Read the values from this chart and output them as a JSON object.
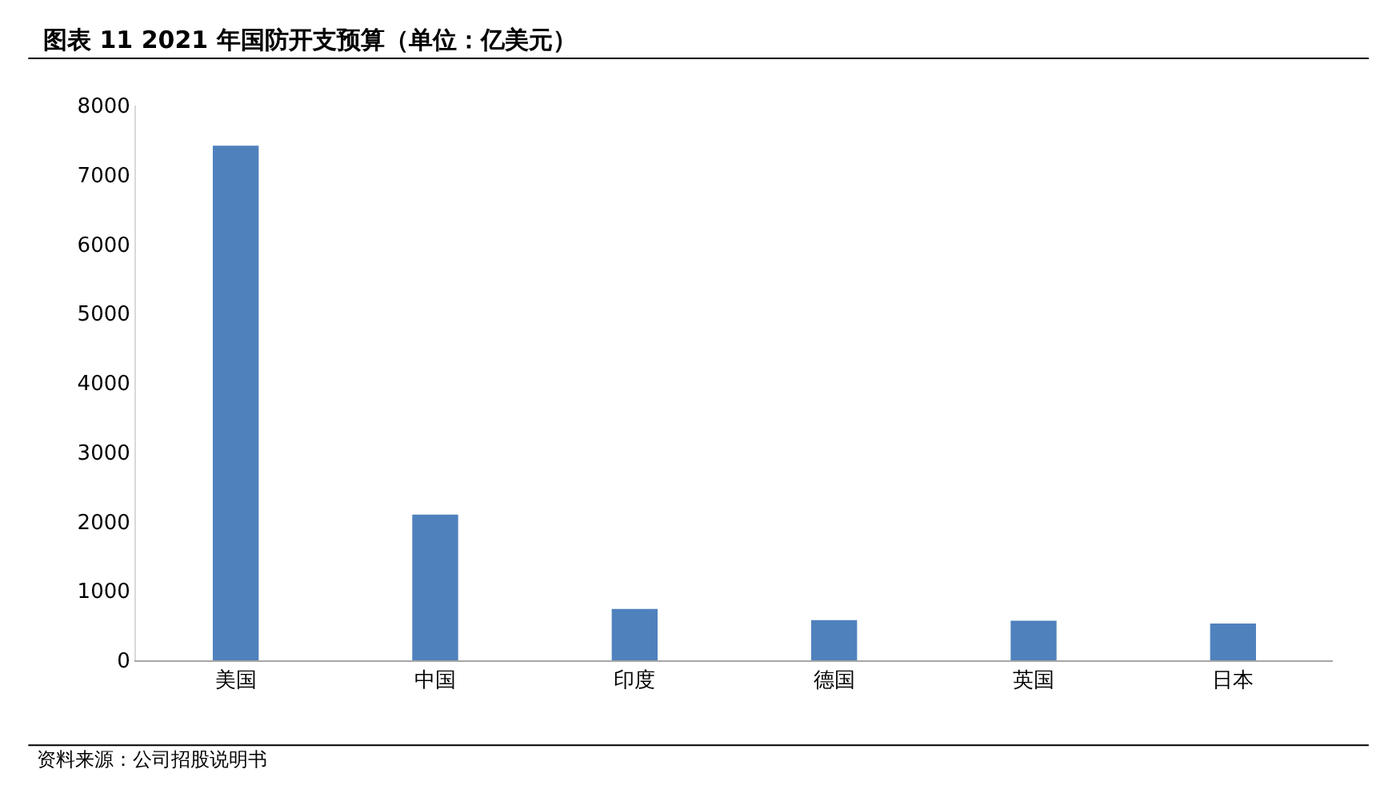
{
  "chart_data": {
    "type": "bar",
    "title": "图表 11 2021 年国防开支预算（单位：亿美元）",
    "categories": [
      "美国",
      "中国",
      "印度",
      "德国",
      "英国",
      "日本"
    ],
    "values": [
      7420,
      2100,
      740,
      580,
      570,
      530
    ],
    "color": "#4f81bd",
    "ylim": [
      0,
      8000
    ],
    "yticks": [
      0,
      1000,
      2000,
      3000,
      4000,
      5000,
      6000,
      7000,
      8000
    ],
    "grid": false,
    "annotations": [
      "资料来源：公司招股说明书"
    ]
  }
}
